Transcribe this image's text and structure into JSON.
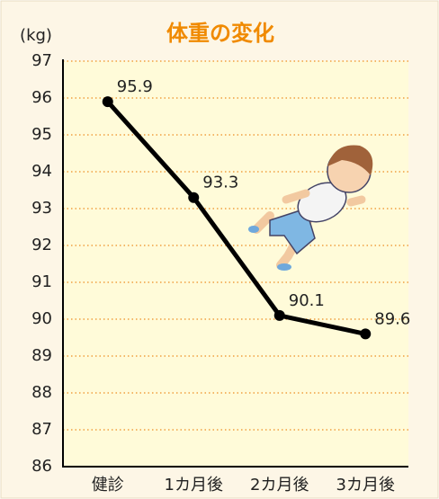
{
  "chart_data": {
    "type": "line",
    "title": "体重の変化",
    "y_label": "(kg)",
    "categories": [
      "健診",
      "1カ月後",
      "2カ月後",
      "3カ月後"
    ],
    "values": [
      95.9,
      93.3,
      90.1,
      89.6
    ],
    "color": "#000000",
    "ylim": [
      86,
      97
    ],
    "yticks": [
      86,
      87,
      88,
      89,
      90,
      91,
      92,
      93,
      94,
      95,
      96,
      97
    ],
    "grid": true
  }
}
